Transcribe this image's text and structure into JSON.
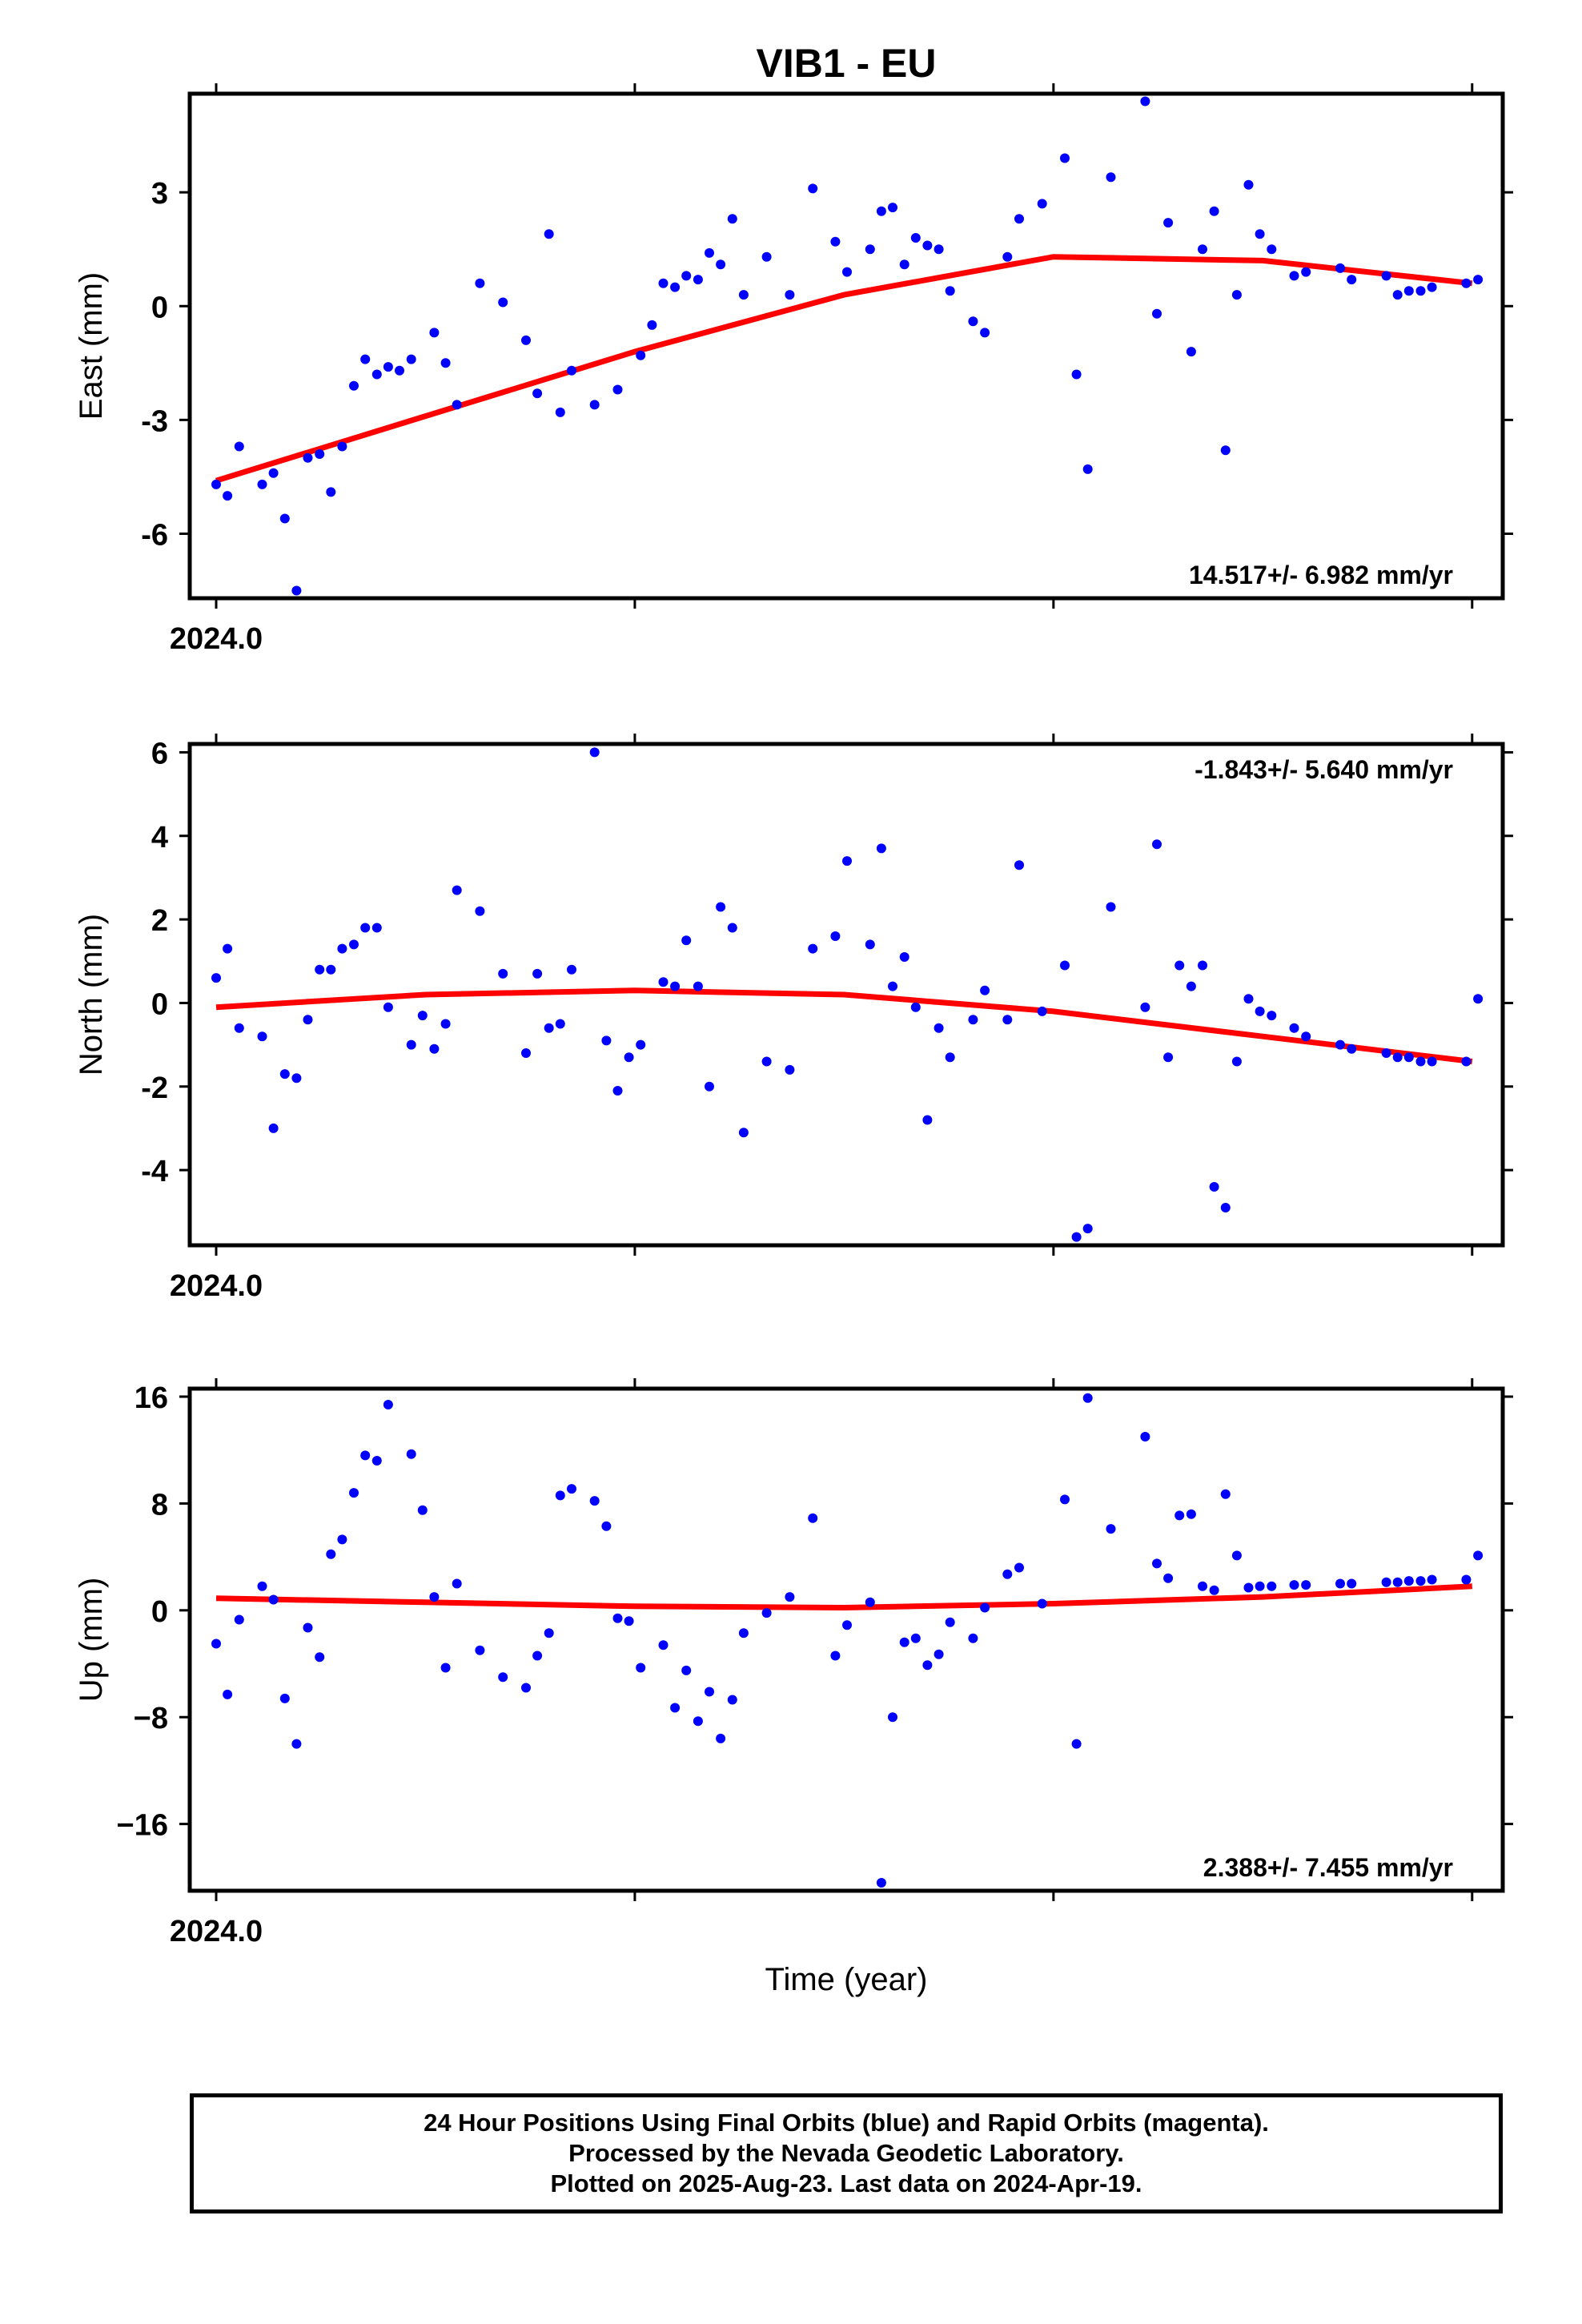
{
  "figure_title": "VIB1 - EU",
  "x_axis_label": "Time (year)",
  "caption_lines": [
    "24 Hour Positions Using Final Orbits (blue) and Rapid Orbits (magenta).",
    "Processed by the Nevada Geodetic Laboratory.",
    "Plotted on 2025-Aug-23. Last data on 2024-Apr-19."
  ],
  "colors": {
    "points": "#0000ff",
    "fit": "#ff0000",
    "frame": "#000000"
  },
  "chart_data": [
    {
      "type": "scatter",
      "title": "VIB1 - EU",
      "ylabel": "East (mm)",
      "xlabel": "",
      "xlim": [
        2024.0,
        2024.301
      ],
      "ylim": [
        -7.7,
        5.6
      ],
      "x_ticks": [
        2024.0,
        2024.1,
        2024.2,
        2024.3
      ],
      "x_tick_labels": [
        "2024.0",
        "",
        "",
        ""
      ],
      "y_ticks": [
        -6,
        -3,
        0,
        3
      ],
      "y_tick_labels": [
        "-6",
        "-3",
        "0",
        "3"
      ],
      "rate_label": "14.517+/- 6.982 mm/yr",
      "rate_label_position": "bottom-right",
      "grid": false,
      "series": [
        {
          "kind": "points",
          "x": [
            2024.0,
            2024.0027,
            2024.0055,
            2024.011,
            2024.0137,
            2024.0164,
            2024.0192,
            2024.0219,
            2024.0247,
            2024.0274,
            2024.0301,
            2024.0329,
            2024.0356,
            2024.0384,
            2024.0411,
            2024.0438,
            2024.0466,
            2024.0521,
            2024.0548,
            2024.0575,
            2024.063,
            2024.0685,
            2024.074,
            2024.0767,
            2024.0795,
            2024.0822,
            2024.0849,
            2024.0904,
            2024.0959,
            2024.1014,
            2024.1041,
            2024.1068,
            2024.1096,
            2024.1123,
            2024.1151,
            2024.1178,
            2024.1205,
            2024.1233,
            2024.126,
            2024.1315,
            2024.137,
            2024.1425,
            2024.1479,
            2024.1507,
            2024.1562,
            2024.1589,
            2024.1616,
            2024.1644,
            2024.1671,
            2024.1699,
            2024.1726,
            2024.1753,
            2024.1808,
            2024.1836,
            2024.189,
            2024.1918,
            2024.1973,
            2024.2027,
            2024.2055,
            2024.2082,
            2024.2137,
            2024.2219,
            2024.2247,
            2024.2274,
            2024.2329,
            2024.2356,
            2024.2384,
            2024.2411,
            2024.2438,
            2024.2466,
            2024.2493,
            2024.2521,
            2024.2575,
            2024.2603,
            2024.2685,
            2024.2712,
            2024.2795,
            2024.2822,
            2024.2849,
            2024.2877,
            2024.2904,
            2024.2986,
            2024.3014
          ],
          "y": [
            -4.7,
            -5.0,
            -3.7,
            -4.7,
            -4.4,
            -5.6,
            -7.5,
            -4.0,
            -3.9,
            -4.9,
            -3.7,
            -2.1,
            -1.4,
            -1.8,
            -1.6,
            -1.7,
            -1.4,
            -0.7,
            -1.5,
            -2.6,
            0.6,
            0.1,
            -0.9,
            -2.3,
            1.9,
            -2.8,
            -1.7,
            -2.6,
            -2.2,
            -1.3,
            -0.5,
            0.6,
            0.5,
            0.8,
            0.7,
            1.4,
            1.1,
            2.3,
            0.3,
            1.3,
            0.3,
            3.1,
            1.7,
            0.9,
            1.5,
            2.5,
            2.6,
            1.1,
            1.8,
            1.6,
            1.5,
            0.4,
            -0.4,
            -0.7,
            1.3,
            2.3,
            2.7,
            3.9,
            -1.8,
            -4.3,
            3.4,
            5.4,
            -0.2,
            2.2,
            -1.2,
            1.5,
            2.5,
            -3.8,
            0.3,
            3.2,
            1.9,
            1.5,
            0.8,
            0.9,
            1.0,
            0.7,
            0.8,
            0.3,
            0.4,
            0.4,
            0.5,
            0.6,
            0.7
          ]
        },
        {
          "kind": "fit",
          "x": [
            2024.0,
            2024.05,
            2024.1,
            2024.15,
            2024.2,
            2024.25,
            2024.3
          ],
          "y": [
            -4.6,
            -2.9,
            -1.2,
            0.3,
            1.3,
            1.2,
            0.6
          ]
        }
      ]
    },
    {
      "type": "scatter",
      "title": "",
      "ylabel": "North (mm)",
      "xlabel": "",
      "xlim": [
        2024.0,
        2024.301
      ],
      "ylim": [
        -5.8,
        6.2
      ],
      "x_ticks": [
        2024.0,
        2024.1,
        2024.2,
        2024.3
      ],
      "x_tick_labels": [
        "2024.0",
        "",
        "",
        ""
      ],
      "y_ticks": [
        -4,
        -2,
        0,
        2,
        4,
        6
      ],
      "y_tick_labels": [
        "-4",
        "-2",
        "0",
        "2",
        "4",
        "6"
      ],
      "rate_label": "-1.843+/- 5.640 mm/yr",
      "rate_label_position": "top-right",
      "grid": false,
      "series": [
        {
          "kind": "points",
          "x": [
            2024.0,
            2024.0027,
            2024.0055,
            2024.011,
            2024.0137,
            2024.0164,
            2024.0192,
            2024.0219,
            2024.0247,
            2024.0274,
            2024.0301,
            2024.0329,
            2024.0356,
            2024.0384,
            2024.0411,
            2024.0466,
            2024.0493,
            2024.0521,
            2024.0548,
            2024.0575,
            2024.063,
            2024.0685,
            2024.074,
            2024.0767,
            2024.0795,
            2024.0822,
            2024.0849,
            2024.0904,
            2024.0932,
            2024.0959,
            2024.0986,
            2024.1014,
            2024.1068,
            2024.1096,
            2024.1123,
            2024.1151,
            2024.1178,
            2024.1205,
            2024.1233,
            2024.126,
            2024.1315,
            2024.137,
            2024.1425,
            2024.1479,
            2024.1507,
            2024.1562,
            2024.1589,
            2024.1616,
            2024.1644,
            2024.1671,
            2024.1699,
            2024.1726,
            2024.1753,
            2024.1808,
            2024.1836,
            2024.189,
            2024.1918,
            2024.1973,
            2024.2027,
            2024.2055,
            2024.2082,
            2024.2137,
            2024.2219,
            2024.2247,
            2024.2274,
            2024.2301,
            2024.2329,
            2024.2356,
            2024.2384,
            2024.2411,
            2024.2438,
            2024.2466,
            2024.2493,
            2024.2521,
            2024.2575,
            2024.2603,
            2024.2685,
            2024.2712,
            2024.2795,
            2024.2822,
            2024.2849,
            2024.2877,
            2024.2904,
            2024.2986,
            2024.3014
          ],
          "y": [
            0.6,
            1.3,
            -0.6,
            -0.8,
            -3.0,
            -1.7,
            -1.8,
            -0.4,
            0.8,
            0.8,
            1.3,
            1.4,
            1.8,
            1.8,
            -0.1,
            -1.0,
            -0.3,
            -1.1,
            -0.5,
            2.7,
            2.2,
            0.7,
            -1.2,
            0.7,
            -0.6,
            -0.5,
            0.8,
            6.0,
            -0.9,
            -2.1,
            -1.3,
            -1.0,
            0.5,
            0.4,
            1.5,
            0.4,
            -2.0,
            2.3,
            1.8,
            -3.1,
            -1.4,
            -1.6,
            1.3,
            1.6,
            3.4,
            1.4,
            3.7,
            0.4,
            1.1,
            -0.1,
            -2.8,
            -0.6,
            -1.3,
            -0.4,
            0.3,
            -0.4,
            3.3,
            -0.2,
            0.9,
            -5.6,
            -5.4,
            2.3,
            -0.1,
            3.8,
            -1.3,
            0.9,
            0.4,
            0.9,
            -4.4,
            -4.9,
            -1.4,
            0.1,
            -0.2,
            -0.3,
            -0.6,
            -0.8,
            -1.0,
            -1.1,
            -1.2,
            -1.3,
            -1.3,
            -1.4,
            -1.4,
            -1.4,
            0.1
          ]
        },
        {
          "kind": "fit",
          "x": [
            2024.0,
            2024.05,
            2024.1,
            2024.15,
            2024.2,
            2024.25,
            2024.3
          ],
          "y": [
            -0.1,
            0.2,
            0.3,
            0.2,
            -0.2,
            -0.8,
            -1.4
          ]
        }
      ]
    },
    {
      "type": "scatter",
      "title": "",
      "ylabel": "Up (mm)",
      "xlabel": "Time (year)",
      "xlim": [
        2024.0,
        2024.301
      ],
      "ylim": [
        -21,
        16.6
      ],
      "x_ticks": [
        2024.0,
        2024.1,
        2024.2,
        2024.3
      ],
      "x_tick_labels": [
        "2024.0",
        "",
        "",
        ""
      ],
      "y_ticks": [
        -16,
        -8,
        0,
        8,
        16
      ],
      "y_tick_labels": [
        "−16",
        "−8",
        "0",
        "8",
        "16"
      ],
      "rate_label": "2.388+/- 7.455 mm/yr",
      "rate_label_position": "bottom-right",
      "grid": false,
      "series": [
        {
          "kind": "points",
          "x": [
            2024.0,
            2024.0027,
            2024.0055,
            2024.011,
            2024.0137,
            2024.0164,
            2024.0192,
            2024.0219,
            2024.0247,
            2024.0274,
            2024.0301,
            2024.0329,
            2024.0356,
            2024.0384,
            2024.0411,
            2024.0466,
            2024.0493,
            2024.0521,
            2024.0548,
            2024.0575,
            2024.063,
            2024.0685,
            2024.074,
            2024.0767,
            2024.0795,
            2024.0822,
            2024.0849,
            2024.0904,
            2024.0932,
            2024.0959,
            2024.0986,
            2024.1014,
            2024.1068,
            2024.1096,
            2024.1123,
            2024.1151,
            2024.1178,
            2024.1205,
            2024.1233,
            2024.126,
            2024.1315,
            2024.137,
            2024.1425,
            2024.1479,
            2024.1507,
            2024.1562,
            2024.1589,
            2024.1616,
            2024.1644,
            2024.1671,
            2024.1699,
            2024.1726,
            2024.1753,
            2024.1808,
            2024.1836,
            2024.189,
            2024.1918,
            2024.1973,
            2024.2027,
            2024.2055,
            2024.2082,
            2024.2137,
            2024.2219,
            2024.2247,
            2024.2274,
            2024.2301,
            2024.2329,
            2024.2356,
            2024.2384,
            2024.2411,
            2024.2438,
            2024.2466,
            2024.2493,
            2024.2521,
            2024.2575,
            2024.2603,
            2024.2685,
            2024.2712,
            2024.2795,
            2024.2822,
            2024.2849,
            2024.2877,
            2024.2904,
            2024.2986,
            2024.3014
          ],
          "y": [
            -2.5,
            -6.3,
            -0.7,
            1.8,
            0.8,
            -6.6,
            -10.0,
            -1.3,
            -3.5,
            4.2,
            5.3,
            8.8,
            11.6,
            11.2,
            15.4,
            11.7,
            7.5,
            1.0,
            -4.3,
            2.0,
            -3.0,
            -5.0,
            -5.8,
            -3.4,
            -1.7,
            8.6,
            9.1,
            8.2,
            6.3,
            -0.6,
            -0.8,
            -4.3,
            -2.6,
            -7.3,
            -4.5,
            -8.3,
            -6.1,
            -9.6,
            -6.7,
            -1.7,
            -0.2,
            1.0,
            6.9,
            -3.4,
            -1.1,
            0.6,
            -20.4,
            -8.0,
            -2.4,
            -2.1,
            -4.1,
            -3.3,
            -0.9,
            -2.1,
            0.2,
            2.7,
            3.2,
            0.5,
            8.3,
            -10.0,
            15.9,
            6.1,
            13.0,
            3.5,
            2.4,
            7.1,
            7.2,
            1.8,
            1.5,
            8.7,
            4.1,
            1.7,
            1.8,
            1.8,
            1.9,
            1.9,
            2.0,
            2.0,
            2.1,
            2.1,
            2.2,
            2.2,
            2.3,
            2.3,
            4.1
          ]
        },
        {
          "kind": "fit",
          "x": [
            2024.0,
            2024.05,
            2024.1,
            2024.15,
            2024.2,
            2024.25,
            2024.3
          ],
          "y": [
            0.9,
            0.6,
            0.3,
            0.2,
            0.5,
            1.0,
            1.8
          ]
        }
      ]
    }
  ]
}
